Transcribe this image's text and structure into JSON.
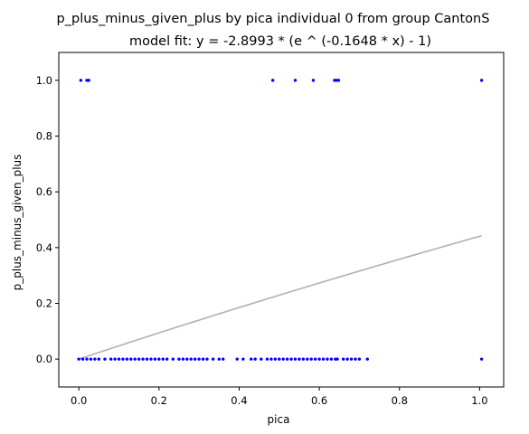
{
  "chart_data": {
    "type": "scatter",
    "title": "p_plus_minus_given_plus by pica individual 0 from group CantonS",
    "subtitle": "model fit: y = -2.8993 * (e ^ (-0.1648 * x) - 1)",
    "xlabel": "pica",
    "ylabel": "p_plus_minus_given_plus",
    "xlim": [
      -0.05,
      1.06
    ],
    "ylim": [
      -0.1,
      1.1
    ],
    "xticks": [
      0.0,
      0.2,
      0.4,
      0.6,
      0.8,
      1.0
    ],
    "xtick_labels": [
      "0.0",
      "0.2",
      "0.4",
      "0.6",
      "0.8",
      "1.0"
    ],
    "yticks": [
      0.0,
      0.2,
      0.4,
      0.6,
      0.8,
      1.0
    ],
    "ytick_labels": [
      "0.0",
      "0.2",
      "0.4",
      "0.6",
      "0.8",
      "1.0"
    ],
    "grid": false,
    "point_color": "#0000ff",
    "fit_color": "#b0b0b0",
    "fit_model": {
      "a": -2.8993,
      "b": -0.1648,
      "x_range": [
        0.0,
        1.005
      ]
    },
    "series": [
      {
        "points": [
          {
            "x": 0.005,
            "y": 1
          },
          {
            "x": 0.02,
            "y": 1
          },
          {
            "x": 0.025,
            "y": 1
          },
          {
            "x": 0.484,
            "y": 1
          },
          {
            "x": 0.54,
            "y": 1
          },
          {
            "x": 0.585,
            "y": 1
          },
          {
            "x": 0.638,
            "y": 1
          },
          {
            "x": 0.643,
            "y": 1
          },
          {
            "x": 0.648,
            "y": 1
          },
          {
            "x": 1.005,
            "y": 1
          },
          {
            "x": 0.0,
            "y": 0
          },
          {
            "x": 0.01,
            "y": 0
          },
          {
            "x": 0.02,
            "y": 0
          },
          {
            "x": 0.03,
            "y": 0
          },
          {
            "x": 0.04,
            "y": 0
          },
          {
            "x": 0.05,
            "y": 0
          },
          {
            "x": 0.065,
            "y": 0
          },
          {
            "x": 0.08,
            "y": 0
          },
          {
            "x": 0.09,
            "y": 0
          },
          {
            "x": 0.1,
            "y": 0
          },
          {
            "x": 0.11,
            "y": 0
          },
          {
            "x": 0.12,
            "y": 0
          },
          {
            "x": 0.13,
            "y": 0
          },
          {
            "x": 0.14,
            "y": 0
          },
          {
            "x": 0.15,
            "y": 0
          },
          {
            "x": 0.16,
            "y": 0
          },
          {
            "x": 0.17,
            "y": 0
          },
          {
            "x": 0.18,
            "y": 0
          },
          {
            "x": 0.19,
            "y": 0
          },
          {
            "x": 0.2,
            "y": 0
          },
          {
            "x": 0.21,
            "y": 0
          },
          {
            "x": 0.22,
            "y": 0
          },
          {
            "x": 0.235,
            "y": 0
          },
          {
            "x": 0.25,
            "y": 0
          },
          {
            "x": 0.26,
            "y": 0
          },
          {
            "x": 0.27,
            "y": 0
          },
          {
            "x": 0.28,
            "y": 0
          },
          {
            "x": 0.29,
            "y": 0
          },
          {
            "x": 0.3,
            "y": 0
          },
          {
            "x": 0.31,
            "y": 0
          },
          {
            "x": 0.32,
            "y": 0
          },
          {
            "x": 0.335,
            "y": 0
          },
          {
            "x": 0.35,
            "y": 0
          },
          {
            "x": 0.36,
            "y": 0
          },
          {
            "x": 0.395,
            "y": 0
          },
          {
            "x": 0.41,
            "y": 0
          },
          {
            "x": 0.43,
            "y": 0
          },
          {
            "x": 0.44,
            "y": 0
          },
          {
            "x": 0.455,
            "y": 0
          },
          {
            "x": 0.47,
            "y": 0
          },
          {
            "x": 0.48,
            "y": 0
          },
          {
            "x": 0.49,
            "y": 0
          },
          {
            "x": 0.5,
            "y": 0
          },
          {
            "x": 0.51,
            "y": 0
          },
          {
            "x": 0.52,
            "y": 0
          },
          {
            "x": 0.53,
            "y": 0
          },
          {
            "x": 0.54,
            "y": 0
          },
          {
            "x": 0.55,
            "y": 0
          },
          {
            "x": 0.56,
            "y": 0
          },
          {
            "x": 0.57,
            "y": 0
          },
          {
            "x": 0.58,
            "y": 0
          },
          {
            "x": 0.59,
            "y": 0
          },
          {
            "x": 0.6,
            "y": 0
          },
          {
            "x": 0.61,
            "y": 0
          },
          {
            "x": 0.62,
            "y": 0
          },
          {
            "x": 0.63,
            "y": 0
          },
          {
            "x": 0.64,
            "y": 0
          },
          {
            "x": 0.645,
            "y": 0
          },
          {
            "x": 0.66,
            "y": 0
          },
          {
            "x": 0.67,
            "y": 0
          },
          {
            "x": 0.68,
            "y": 0
          },
          {
            "x": 0.69,
            "y": 0
          },
          {
            "x": 0.7,
            "y": 0
          },
          {
            "x": 0.72,
            "y": 0
          },
          {
            "x": 1.005,
            "y": 0
          }
        ]
      }
    ]
  }
}
